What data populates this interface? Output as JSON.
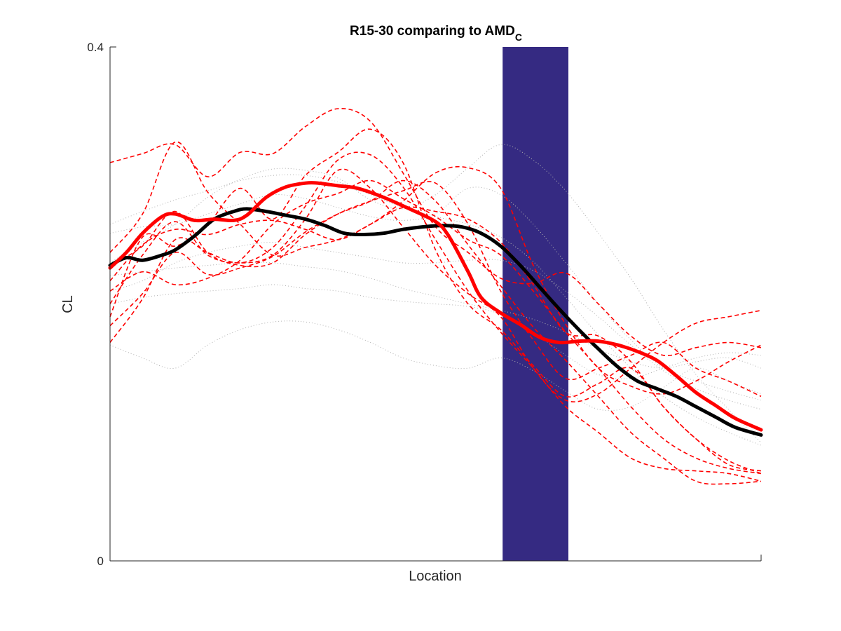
{
  "chart_data": {
    "type": "line",
    "title": "R15-30 comparing to AMD",
    "title_subscript": "C",
    "xlabel": "Location",
    "ylabel": "CL",
    "xlim": [
      0,
      100
    ],
    "ylim": [
      0,
      0.4
    ],
    "yticks": [
      {
        "value": 0,
        "label": "0"
      },
      {
        "value": 0.4,
        "label": "0.4"
      }
    ],
    "grid": false,
    "legend": "none",
    "highlight_band": {
      "x_start": 60.3,
      "x_end": 70.4,
      "color": "#352a82"
    },
    "colors": {
      "red": "#ff0000",
      "black": "#000000",
      "grey": "#b0b0b0"
    },
    "series": [
      {
        "style": "dotted-grey",
        "x": [
          0,
          5,
          10,
          15,
          20,
          25,
          30,
          35,
          40,
          45,
          50,
          55,
          60,
          65,
          70,
          75,
          80,
          85,
          90,
          95,
          100
        ],
        "values": [
          0.232,
          0.248,
          0.262,
          0.283,
          0.297,
          0.305,
          0.304,
          0.298,
          0.281,
          0.274,
          0.285,
          0.306,
          0.324,
          0.312,
          0.288,
          0.255,
          0.22,
          0.18,
          0.145,
          0.118,
          0.092
        ]
      },
      {
        "style": "dotted-grey",
        "x": [
          0,
          5,
          10,
          15,
          20,
          25,
          30,
          35,
          40,
          45,
          50,
          55,
          60,
          65,
          70,
          75,
          80,
          85,
          90,
          95,
          100
        ],
        "values": [
          0.262,
          0.272,
          0.281,
          0.288,
          0.296,
          0.3,
          0.3,
          0.295,
          0.285,
          0.275,
          0.268,
          0.262,
          0.252,
          0.233,
          0.205,
          0.176,
          0.15,
          0.128,
          0.112,
          0.1,
          0.09
        ]
      },
      {
        "style": "dotted-grey",
        "x": [
          0,
          5,
          10,
          15,
          20,
          25,
          30,
          35,
          40,
          45,
          50,
          55,
          60,
          65,
          70,
          75,
          80,
          85,
          90,
          95,
          100
        ],
        "values": [
          0.255,
          0.26,
          0.262,
          0.27,
          0.278,
          0.285,
          0.282,
          0.275,
          0.268,
          0.265,
          0.27,
          0.29,
          0.285,
          0.262,
          0.232,
          0.2,
          0.172,
          0.15,
          0.14,
          0.132,
          0.125
        ]
      },
      {
        "style": "dotted-grey",
        "x": [
          0,
          5,
          10,
          15,
          20,
          25,
          30,
          35,
          40,
          45,
          50,
          55,
          60,
          65,
          70,
          75,
          80,
          85,
          90,
          95,
          100
        ],
        "values": [
          0.21,
          0.218,
          0.232,
          0.24,
          0.245,
          0.248,
          0.244,
          0.24,
          0.236,
          0.232,
          0.232,
          0.234,
          0.234,
          0.226,
          0.21,
          0.19,
          0.168,
          0.148,
          0.134,
          0.125,
          0.118
        ]
      },
      {
        "style": "dotted-grey",
        "x": [
          0,
          5,
          10,
          15,
          20,
          25,
          30,
          35,
          40,
          45,
          50,
          55,
          60,
          65,
          70,
          75,
          80,
          85,
          90,
          95,
          100
        ],
        "values": [
          0.222,
          0.225,
          0.228,
          0.23,
          0.232,
          0.232,
          0.229,
          0.226,
          0.22,
          0.212,
          0.206,
          0.2,
          0.195,
          0.188,
          0.178,
          0.165,
          0.155,
          0.15,
          0.155,
          0.158,
          0.15
        ]
      },
      {
        "style": "dotted-grey",
        "x": [
          0,
          5,
          10,
          15,
          20,
          25,
          30,
          35,
          40,
          45,
          50,
          55,
          60,
          65,
          70,
          75,
          80,
          85,
          90,
          95,
          100
        ],
        "values": [
          0.2,
          0.205,
          0.208,
          0.21,
          0.212,
          0.215,
          0.212,
          0.21,
          0.205,
          0.202,
          0.2,
          0.198,
          0.192,
          0.178,
          0.16,
          0.145,
          0.142,
          0.15,
          0.158,
          0.162,
          0.16
        ]
      },
      {
        "style": "dotted-grey",
        "x": [
          0,
          5,
          10,
          15,
          20,
          25,
          30,
          35,
          40,
          45,
          50,
          55,
          60,
          65,
          70,
          75,
          80,
          85,
          90,
          95,
          100
        ],
        "values": [
          0.168,
          0.158,
          0.15,
          0.168,
          0.18,
          0.186,
          0.186,
          0.18,
          0.17,
          0.158,
          0.152,
          0.15,
          0.158,
          0.148,
          0.132,
          0.118,
          0.12,
          0.135,
          0.15,
          0.14,
          0.13
        ]
      },
      {
        "style": "dashed-red",
        "x": [
          0,
          5,
          10,
          15,
          20,
          25,
          30,
          35,
          40,
          45,
          50,
          55,
          60,
          65,
          70,
          75,
          80,
          85,
          90,
          95,
          100
        ],
        "values": [
          0.31,
          0.317,
          0.324,
          0.299,
          0.318,
          0.317,
          0.338,
          0.352,
          0.342,
          0.302,
          0.26,
          0.24,
          0.22,
          0.216,
          0.224,
          0.2,
          0.175,
          0.16,
          0.166,
          0.17,
          0.166
        ]
      },
      {
        "style": "dashed-red",
        "x": [
          0,
          5,
          10,
          15,
          20,
          25,
          30,
          35,
          40,
          45,
          50,
          55,
          60,
          65,
          70,
          75,
          80,
          85,
          90,
          95,
          100
        ],
        "values": [
          0.24,
          0.27,
          0.326,
          0.287,
          0.262,
          0.238,
          0.244,
          0.25,
          0.262,
          0.28,
          0.302,
          0.306,
          0.29,
          0.23,
          0.184,
          0.15,
          0.136,
          0.13,
          0.14,
          0.155,
          0.168
        ]
      },
      {
        "style": "dashed-red",
        "x": [
          0,
          5,
          10,
          15,
          20,
          25,
          30,
          35,
          40,
          45,
          50,
          55,
          60,
          65,
          70,
          75,
          80,
          85,
          90,
          95,
          100
        ],
        "values": [
          0.23,
          0.245,
          0.272,
          0.24,
          0.23,
          0.232,
          0.254,
          0.27,
          0.28,
          0.288,
          0.294,
          0.262,
          0.21,
          0.172,
          0.142,
          0.15,
          0.16,
          0.17,
          0.15,
          0.14,
          0.128
        ]
      },
      {
        "style": "dashed-red",
        "x": [
          0,
          5,
          10,
          15,
          20,
          25,
          30,
          35,
          40,
          45,
          50,
          55,
          60,
          65,
          70,
          75,
          80,
          85,
          90,
          95,
          100
        ],
        "values": [
          0.2,
          0.238,
          0.264,
          0.238,
          0.232,
          0.238,
          0.266,
          0.304,
          0.29,
          0.26,
          0.23,
          0.208,
          0.19,
          0.15,
          0.125,
          0.13,
          0.15,
          0.17,
          0.185,
          0.19,
          0.195
        ]
      },
      {
        "style": "dashed-red",
        "x": [
          0,
          5,
          10,
          15,
          20,
          25,
          30,
          35,
          40,
          45,
          50,
          55,
          60,
          65,
          70,
          75,
          80,
          85,
          90,
          95,
          100
        ],
        "values": [
          0.183,
          0.208,
          0.24,
          0.223,
          0.228,
          0.237,
          0.256,
          0.27,
          0.28,
          0.296,
          0.28,
          0.246,
          0.214,
          0.182,
          0.156,
          0.128,
          0.1,
          0.08,
          0.062,
          0.06,
          0.062
        ]
      },
      {
        "style": "dashed-red",
        "x": [
          0,
          5,
          10,
          15,
          20,
          25,
          30,
          35,
          40,
          45,
          50,
          55,
          60,
          65,
          70,
          75,
          80,
          85,
          90,
          95,
          100
        ],
        "values": [
          0.17,
          0.204,
          0.25,
          0.24,
          0.232,
          0.244,
          0.276,
          0.312,
          0.316,
          0.291,
          0.25,
          0.21,
          0.178,
          0.15,
          0.12,
          0.1,
          0.08,
          0.072,
          0.07,
          0.068,
          0.062
        ]
      },
      {
        "style": "dashed-red",
        "x": [
          0,
          5,
          10,
          15,
          20,
          25,
          30,
          35,
          40,
          45,
          50,
          55,
          60,
          65,
          70,
          75,
          80,
          85,
          90,
          95,
          100
        ],
        "values": [
          0.21,
          0.225,
          0.215,
          0.22,
          0.234,
          0.262,
          0.278,
          0.286,
          0.296,
          0.282,
          0.268,
          0.25,
          0.238,
          0.21,
          0.178,
          0.15,
          0.12,
          0.095,
          0.08,
          0.072,
          0.068
        ]
      },
      {
        "style": "dashed-red",
        "x": [
          0,
          5,
          10,
          15,
          20,
          25,
          30,
          35,
          40,
          45,
          50,
          55,
          60,
          65,
          70,
          75,
          80,
          85,
          90,
          95,
          100
        ],
        "values": [
          0.19,
          0.252,
          0.245,
          0.262,
          0.29,
          0.266,
          0.3,
          0.318,
          0.336,
          0.31,
          0.242,
          0.2,
          0.18,
          0.152,
          0.128,
          0.138,
          0.15,
          0.12,
          0.095,
          0.078,
          0.068
        ]
      },
      {
        "style": "dashed-red",
        "x": [
          0,
          5,
          10,
          15,
          20,
          25,
          30,
          35,
          40,
          45,
          50,
          55,
          60,
          65,
          70,
          75,
          80,
          85,
          90,
          95,
          100
        ],
        "values": [
          0.218,
          0.246,
          0.258,
          0.254,
          0.262,
          0.265,
          0.258,
          0.25,
          0.262,
          0.275,
          0.272,
          0.266,
          0.248,
          0.215,
          0.178,
          0.175,
          0.155,
          0.12,
          0.095,
          0.075,
          0.07
        ]
      },
      {
        "style": "thick-black",
        "x": [
          0,
          2.5,
          5,
          8,
          10,
          13,
          16,
          19,
          21,
          24,
          27,
          30,
          33,
          36,
          39,
          42,
          45,
          48,
          51,
          54,
          57,
          60,
          63,
          66,
          69,
          72,
          75,
          78,
          81,
          84,
          87,
          90,
          93,
          96,
          100
        ],
        "values": [
          0.23,
          0.236,
          0.234,
          0.238,
          0.242,
          0.253,
          0.266,
          0.272,
          0.274,
          0.272,
          0.269,
          0.266,
          0.261,
          0.255,
          0.254,
          0.255,
          0.258,
          0.26,
          0.261,
          0.26,
          0.255,
          0.245,
          0.23,
          0.213,
          0.196,
          0.18,
          0.165,
          0.151,
          0.14,
          0.134,
          0.128,
          0.12,
          0.112,
          0.104,
          0.098
        ]
      },
      {
        "style": "thick-red",
        "x": [
          0,
          2.5,
          5,
          8,
          10,
          13,
          16,
          19,
          21,
          24,
          27,
          30,
          32,
          35,
          38,
          42,
          46,
          50,
          52,
          55,
          57,
          60,
          63,
          66,
          69,
          72,
          75,
          78,
          81,
          84,
          87,
          90,
          93,
          96,
          100
        ],
        "values": [
          0.228,
          0.24,
          0.255,
          0.268,
          0.27,
          0.265,
          0.266,
          0.265,
          0.269,
          0.283,
          0.291,
          0.294,
          0.294,
          0.292,
          0.29,
          0.283,
          0.274,
          0.264,
          0.253,
          0.225,
          0.205,
          0.193,
          0.184,
          0.174,
          0.17,
          0.171,
          0.171,
          0.168,
          0.163,
          0.156,
          0.144,
          0.131,
          0.121,
          0.111,
          0.102
        ]
      }
    ]
  }
}
